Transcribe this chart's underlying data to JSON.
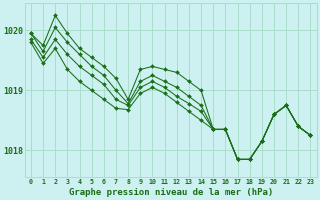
{
  "title": "Graphe pression niveau de la mer (hPa)",
  "bg_color": "#cdf0f0",
  "grid_color": "#aaddcc",
  "line_color": "#1a6e1a",
  "x_ticks": [
    0,
    1,
    2,
    3,
    4,
    5,
    6,
    7,
    8,
    9,
    10,
    11,
    12,
    13,
    14,
    15,
    16,
    17,
    18,
    19,
    20,
    21,
    22,
    23
  ],
  "ylim": [
    1017.55,
    1020.45
  ],
  "yticks": [
    1018,
    1019,
    1020
  ],
  "series": [
    [
      1019.95,
      1019.75,
      1020.25,
      1019.95,
      1019.7,
      1019.55,
      1019.4,
      1019.2,
      1018.85,
      1019.35,
      1019.4,
      1019.35,
      1019.3,
      1019.15,
      1019.0,
      1018.35,
      1018.35,
      1017.85,
      1017.85,
      1018.15,
      1018.6,
      1018.75,
      1018.4,
      1018.25
    ],
    [
      1019.95,
      1019.65,
      1020.05,
      1019.8,
      1019.6,
      1019.4,
      1019.25,
      1019.0,
      1018.78,
      1019.15,
      1019.25,
      1019.15,
      1019.05,
      1018.9,
      1018.75,
      1018.35,
      1018.35,
      1017.85,
      1017.85,
      1018.15,
      1018.6,
      1018.75,
      1018.4,
      1018.25
    ],
    [
      1019.85,
      1019.55,
      1019.85,
      1019.6,
      1019.4,
      1019.25,
      1019.1,
      1018.85,
      1018.75,
      1019.05,
      1019.15,
      1019.05,
      1018.9,
      1018.78,
      1018.65,
      1018.35,
      1018.35,
      1017.85,
      1017.85,
      1018.15,
      1018.6,
      1018.75,
      1018.4,
      1018.25
    ],
    [
      1019.8,
      1019.45,
      1019.7,
      1019.35,
      1019.15,
      1019.0,
      1018.85,
      1018.7,
      1018.68,
      1018.95,
      1019.05,
      1018.95,
      1018.8,
      1018.65,
      1018.5,
      1018.35,
      1018.35,
      1017.85,
      1017.85,
      1018.15,
      1018.6,
      1018.75,
      1018.4,
      1018.25
    ]
  ]
}
